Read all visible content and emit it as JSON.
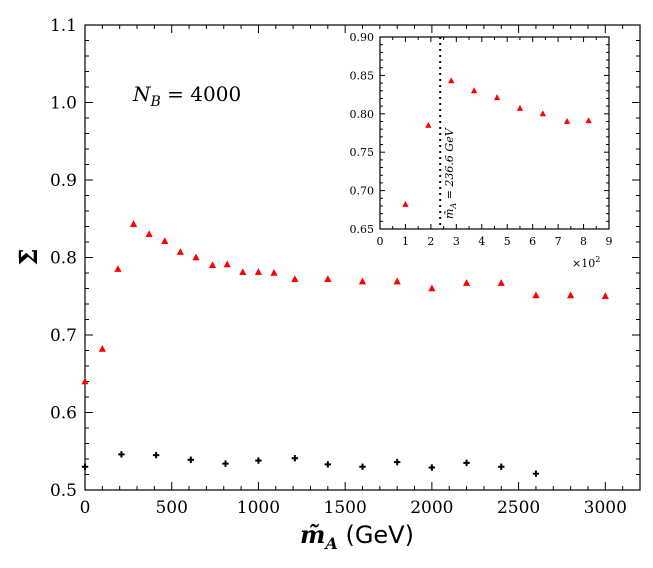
{
  "chart_data": [
    {
      "type": "scatter",
      "title": "",
      "xlabel_symbol": "m̃",
      "xlabel_subscript": "A",
      "xlabel_unit": " (GeV)",
      "ylabel": "Σ̄",
      "xlim": [
        0,
        3200
      ],
      "ylim": [
        0.5,
        1.1
      ],
      "xticks": [
        0,
        500,
        1000,
        1500,
        2000,
        2500,
        3000
      ],
      "xtick_labels": [
        "0",
        "500",
        "1000",
        "1500",
        "2000",
        "2500",
        "3000"
      ],
      "yticks": [
        0.5,
        0.6,
        0.7,
        0.8,
        0.9,
        1.0,
        1.1
      ],
      "ytick_labels": [
        "0.5",
        "0.6",
        "0.7",
        "0.8",
        "0.9",
        "1.0",
        "1.1"
      ],
      "grid": false,
      "annotation": "N_B = 4000",
      "annotation_main": "N",
      "annotation_sub": "B",
      "annotation_rest": " = 4000",
      "series": [
        {
          "marker": "triangle",
          "color": "#ff0000",
          "x": [
            0,
            100,
            190,
            280,
            370,
            460,
            550,
            640,
            735,
            820,
            910,
            1000,
            1090,
            1210,
            1400,
            1600,
            1800,
            2000,
            2200,
            2400,
            2600,
            2800,
            3000
          ],
          "y": [
            0.64,
            0.682,
            0.785,
            0.843,
            0.83,
            0.821,
            0.807,
            0.8,
            0.79,
            0.791,
            0.781,
            0.781,
            0.78,
            0.772,
            0.772,
            0.769,
            0.769,
            0.76,
            0.767,
            0.767,
            0.751,
            0.751,
            0.75
          ]
        },
        {
          "marker": "plus",
          "color": "#000000",
          "x": [
            0,
            210,
            410,
            610,
            810,
            1000,
            1210,
            1400,
            1600,
            1800,
            2000,
            2200,
            2400,
            2600
          ],
          "y": [
            0.53,
            0.546,
            0.545,
            0.539,
            0.534,
            0.538,
            0.541,
            0.533,
            0.53,
            0.536,
            0.529,
            0.535,
            0.53,
            0.521
          ]
        }
      ]
    },
    {
      "type": "scatter",
      "title": "",
      "inset": true,
      "xlim": [
        0,
        9
      ],
      "ylim": [
        0.65,
        0.9
      ],
      "xticks": [
        0,
        1,
        2,
        3,
        4,
        5,
        6,
        7,
        8,
        9
      ],
      "xtick_labels": [
        "0",
        "1",
        "2",
        "3",
        "4",
        "5",
        "6",
        "7",
        "8",
        "9"
      ],
      "yticks": [
        0.65,
        0.7,
        0.75,
        0.8,
        0.85,
        0.9
      ],
      "ytick_labels": [
        "0.65",
        "0.70",
        "0.75",
        "0.80",
        "0.85",
        "0.90"
      ],
      "x_multiplier_base": "×10",
      "x_multiplier_exp": "2",
      "vline_x": 2.366,
      "vline_label_main": "m̃",
      "vline_label_sub": "A",
      "vline_label_rest": " = 236.6 GeV",
      "grid": false,
      "series": [
        {
          "marker": "triangle",
          "color": "#ff0000",
          "x": [
            1.0,
            1.9,
            2.8,
            3.7,
            4.6,
            5.5,
            6.4,
            7.35,
            8.2
          ],
          "y": [
            0.682,
            0.785,
            0.843,
            0.83,
            0.821,
            0.807,
            0.8,
            0.79,
            0.791
          ]
        }
      ]
    }
  ]
}
